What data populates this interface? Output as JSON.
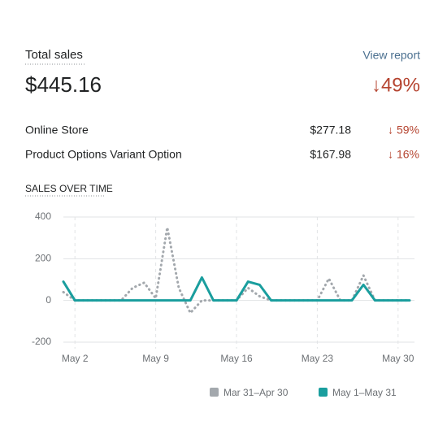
{
  "header": {
    "title": "Total sales",
    "link": "View report"
  },
  "total": {
    "value": "$445.16",
    "change": "↓49%"
  },
  "breakdown": [
    {
      "name": "Online Store",
      "value": "$277.18",
      "change": "↓ 59%"
    },
    {
      "name": "Product Options Variant Option",
      "value": "$167.98",
      "change": "↓ 16%"
    }
  ],
  "chart_data": {
    "type": "line",
    "title": "SALES OVER TIME",
    "x": [
      1,
      2,
      3,
      4,
      5,
      6,
      7,
      8,
      9,
      10,
      11,
      12,
      13,
      14,
      15,
      16,
      17,
      18,
      19,
      20,
      21,
      22,
      23,
      24,
      25,
      26,
      27,
      28,
      29,
      30,
      31
    ],
    "series": [
      {
        "name": "Mar 31–Apr 30",
        "color": "#a3a8ad",
        "dashed": true,
        "values": [
          40,
          0,
          0,
          0,
          0,
          0,
          60,
          85,
          10,
          350,
          60,
          -60,
          0,
          0,
          0,
          0,
          60,
          20,
          0,
          0,
          0,
          0,
          0,
          105,
          0,
          0,
          120,
          0,
          0,
          0,
          0
        ]
      },
      {
        "name": "May 1–May 31",
        "color": "#1a9e9e",
        "dashed": false,
        "values": [
          90,
          0,
          0,
          0,
          0,
          0,
          0,
          0,
          0,
          0,
          0,
          0,
          110,
          0,
          0,
          0,
          90,
          75,
          0,
          0,
          0,
          0,
          0,
          0,
          0,
          0,
          75,
          0,
          0,
          0,
          0
        ]
      }
    ],
    "xlim": [
      1,
      31
    ],
    "xticks": [
      {
        "value": 2,
        "label": "May 2"
      },
      {
        "value": 9,
        "label": "May 9"
      },
      {
        "value": 16,
        "label": "May 16"
      },
      {
        "value": 23,
        "label": "May 23"
      },
      {
        "value": 30,
        "label": "May 30"
      }
    ],
    "ylim": [
      -200,
      400
    ],
    "yticks": [
      -200,
      0,
      200,
      400
    ],
    "grid": true
  }
}
